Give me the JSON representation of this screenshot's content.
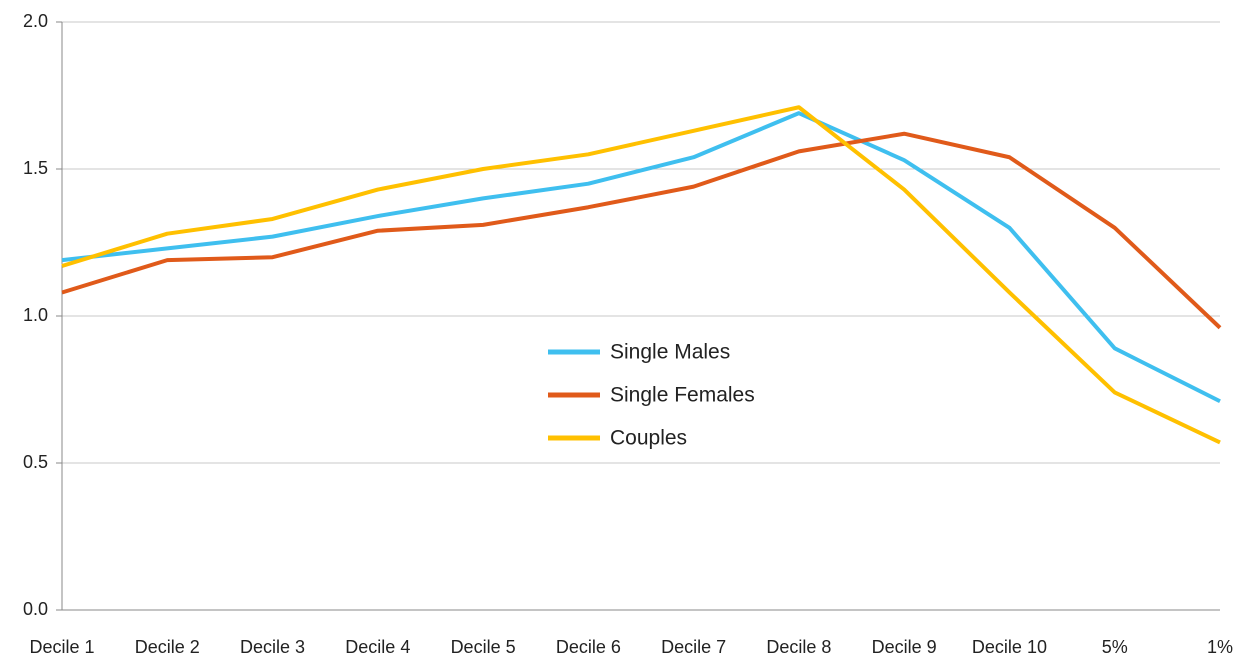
{
  "chart_data": {
    "type": "line",
    "categories": [
      "Decile 1",
      "Decile 2",
      "Decile 3",
      "Decile 4",
      "Decile 5",
      "Decile 6",
      "Decile 7",
      "Decile 8",
      "Decile 9",
      "Decile 10",
      "5%",
      "1%"
    ],
    "series": [
      {
        "name": "Single Males",
        "color": "#3fbfef",
        "values": [
          1.19,
          1.23,
          1.27,
          1.34,
          1.4,
          1.45,
          1.54,
          1.69,
          1.53,
          1.3,
          0.89,
          0.71
        ]
      },
      {
        "name": "Single Females",
        "color": "#e05a1a",
        "values": [
          1.08,
          1.19,
          1.2,
          1.29,
          1.31,
          1.37,
          1.44,
          1.56,
          1.62,
          1.54,
          1.3,
          0.96
        ]
      },
      {
        "name": "Couples",
        "color": "#ffc000",
        "values": [
          1.17,
          1.28,
          1.33,
          1.43,
          1.5,
          1.55,
          1.63,
          1.71,
          1.43,
          1.08,
          0.74,
          0.57
        ]
      }
    ],
    "ylim": [
      0,
      2
    ],
    "yticks": [
      {
        "value": 0,
        "label": "0.0"
      },
      0.5,
      {
        "value": 1,
        "label": "1.0"
      },
      1.5,
      {
        "value": 2,
        "label": "2.0"
      }
    ],
    "grid": true
  }
}
